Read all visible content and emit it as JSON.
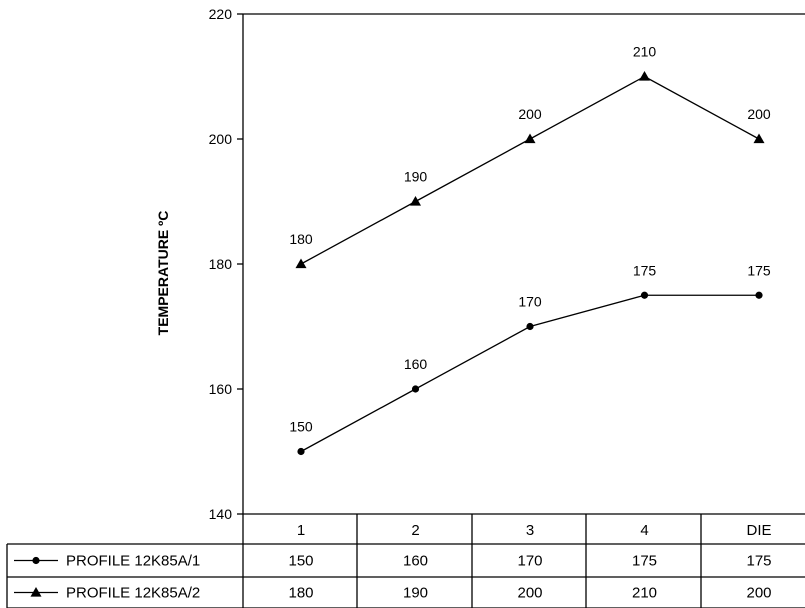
{
  "chart_data": {
    "type": "line",
    "categories": [
      "1",
      "2",
      "3",
      "4",
      "DIE"
    ],
    "series": [
      {
        "name": "PROFILE 12K85A/1",
        "marker": "circle",
        "values": [
          150,
          160,
          170,
          175,
          175
        ]
      },
      {
        "name": "PROFILE 12K85A/2",
        "marker": "triangle",
        "values": [
          180,
          190,
          200,
          210,
          200
        ]
      }
    ],
    "ylabel": "TEMPERATURE ºC",
    "ylim": [
      140,
      220
    ],
    "yticks": [
      140,
      160,
      180,
      200,
      220
    ],
    "data_table": true,
    "grid": false,
    "line_color": "#000000"
  }
}
